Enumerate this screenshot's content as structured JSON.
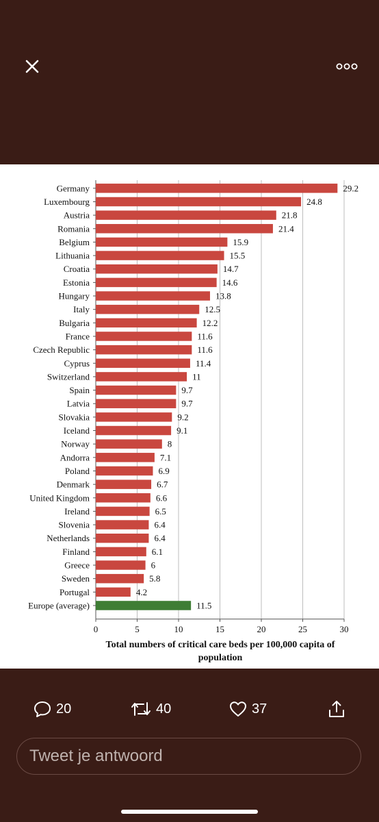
{
  "viewer": {
    "close_icon": "close-icon",
    "more_icon": "more-dots-icon"
  },
  "chart_data": {
    "type": "bar",
    "orientation": "horizontal",
    "categories": [
      "Germany",
      "Luxembourg",
      "Austria",
      "Romania",
      "Belgium",
      "Lithuania",
      "Croatia",
      "Estonia",
      "Hungary",
      "Italy",
      "Bulgaria",
      "France",
      "Czech Republic",
      "Cyprus",
      "Switzerland",
      "Spain",
      "Latvia",
      "Slovakia",
      "Iceland",
      "Norway",
      "Andorra",
      "Poland",
      "Denmark",
      "United Kingdom",
      "Ireland",
      "Slovenia",
      "Netherlands",
      "Finland",
      "Greece",
      "Sweden",
      "Portugal",
      "Europe (average)"
    ],
    "values": [
      29.2,
      24.8,
      21.8,
      21.4,
      15.9,
      15.5,
      14.7,
      14.6,
      13.8,
      12.5,
      12.2,
      11.6,
      11.6,
      11.4,
      11,
      9.7,
      9.7,
      9.2,
      9.1,
      8,
      7.1,
      6.9,
      6.7,
      6.6,
      6.5,
      6.4,
      6.4,
      6.1,
      6,
      5.8,
      4.2,
      11.5
    ],
    "value_labels": [
      "29.2",
      "24.8",
      "21.8",
      "21.4",
      "15.9",
      "15.5",
      "14.7",
      "14.6",
      "13.8",
      "12.5",
      "12.2",
      "11.6",
      "11.6",
      "11.4",
      "11",
      "9.7",
      "9.7",
      "9.2",
      "9.1",
      "8",
      "7.1",
      "6.9",
      "6.7",
      "6.6",
      "6.5",
      "6.4",
      "6.4",
      "6.1",
      "6",
      "5.8",
      "4.2",
      "11.5"
    ],
    "xlim": [
      0,
      30
    ],
    "xticks": [
      "0",
      "5",
      "10",
      "15",
      "20",
      "25",
      "30"
    ],
    "xlabel_line1": "Total numbers of critical care beds per 100,000 capita of",
    "xlabel_line2": "population",
    "grid": "vertical",
    "colors": {
      "bar": "#c9473f",
      "average_bar": "#3e7d34"
    },
    "highlight_category": "Europe (average)"
  },
  "actions": {
    "reply": {
      "icon": "reply-icon",
      "count": "20"
    },
    "retweet": {
      "icon": "retweet-icon",
      "count": "40"
    },
    "like": {
      "icon": "heart-icon",
      "count": "37"
    },
    "share": {
      "icon": "share-icon"
    }
  },
  "reply_box": {
    "placeholder": "Tweet je antwoord"
  }
}
